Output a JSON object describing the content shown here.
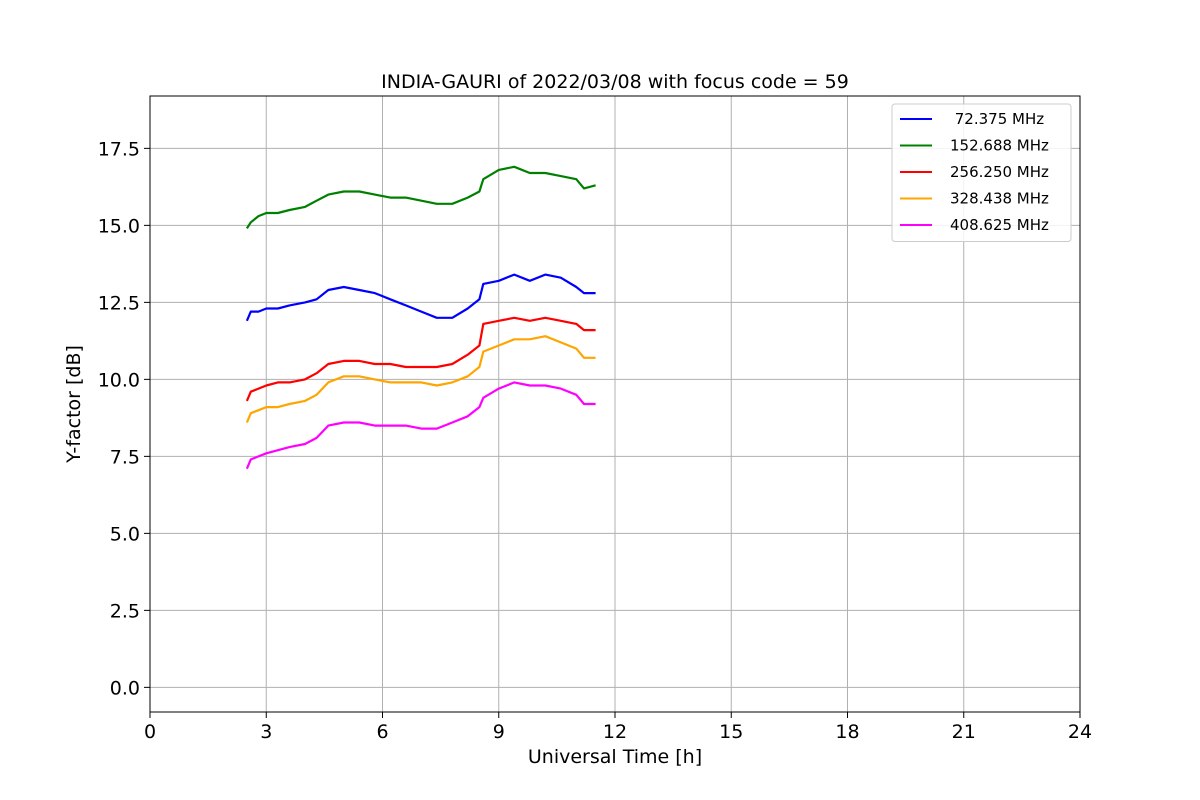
{
  "chart_data": {
    "type": "line",
    "title": "INDIA-GAURI of 2022/03/08 with focus code = 59",
    "xlabel": "Universal Time [h]",
    "ylabel": "Y-factor [dB]",
    "xlim": [
      0,
      24
    ],
    "ylim": [
      -0.8,
      19.2
    ],
    "xticks": [
      0,
      3,
      6,
      9,
      12,
      15,
      18,
      21,
      24
    ],
    "xtick_labels": [
      "0",
      "3",
      "6",
      "9",
      "12",
      "15",
      "18",
      "21",
      "24"
    ],
    "yticks": [
      0,
      2.5,
      5,
      7.5,
      10,
      12.5,
      15,
      17.5
    ],
    "ytick_labels": [
      "0.0",
      "2.5",
      "5.0",
      "7.5",
      "10.0",
      "12.5",
      "15.0",
      "17.5"
    ],
    "grid": true,
    "legend_position": "top-right",
    "series": [
      {
        "name": " 72.375 MHz",
        "color": "#0000ff",
        "x": [
          2.5,
          2.6,
          2.8,
          3.0,
          3.3,
          3.6,
          4.0,
          4.3,
          4.6,
          5.0,
          5.4,
          5.8,
          6.2,
          6.6,
          7.0,
          7.4,
          7.8,
          8.2,
          8.5,
          8.6,
          9.0,
          9.4,
          9.8,
          10.2,
          10.6,
          11.0,
          11.2,
          11.5
        ],
        "y": [
          11.9,
          12.2,
          12.2,
          12.3,
          12.3,
          12.4,
          12.5,
          12.6,
          12.9,
          13.0,
          12.9,
          12.8,
          12.6,
          12.4,
          12.2,
          12.0,
          12.0,
          12.3,
          12.6,
          13.1,
          13.2,
          13.4,
          13.2,
          13.4,
          13.3,
          13.0,
          12.8,
          12.8
        ]
      },
      {
        "name": "152.688 MHz",
        "color": "#008000",
        "x": [
          2.5,
          2.6,
          2.8,
          3.0,
          3.3,
          3.6,
          4.0,
          4.3,
          4.6,
          5.0,
          5.4,
          5.8,
          6.2,
          6.6,
          7.0,
          7.4,
          7.8,
          8.2,
          8.5,
          8.6,
          9.0,
          9.4,
          9.8,
          10.2,
          10.6,
          11.0,
          11.2,
          11.5
        ],
        "y": [
          14.9,
          15.1,
          15.3,
          15.4,
          15.4,
          15.5,
          15.6,
          15.8,
          16.0,
          16.1,
          16.1,
          16.0,
          15.9,
          15.9,
          15.8,
          15.7,
          15.7,
          15.9,
          16.1,
          16.5,
          16.8,
          16.9,
          16.7,
          16.7,
          16.6,
          16.5,
          16.2,
          16.3
        ]
      },
      {
        "name": "256.250 MHz",
        "color": "#ff0000",
        "x": [
          2.5,
          2.6,
          2.8,
          3.0,
          3.3,
          3.6,
          4.0,
          4.3,
          4.6,
          5.0,
          5.4,
          5.8,
          6.2,
          6.6,
          7.0,
          7.4,
          7.8,
          8.2,
          8.5,
          8.6,
          9.0,
          9.4,
          9.8,
          10.2,
          10.6,
          11.0,
          11.2,
          11.5
        ],
        "y": [
          9.3,
          9.6,
          9.7,
          9.8,
          9.9,
          9.9,
          10.0,
          10.2,
          10.5,
          10.6,
          10.6,
          10.5,
          10.5,
          10.4,
          10.4,
          10.4,
          10.5,
          10.8,
          11.1,
          11.8,
          11.9,
          12.0,
          11.9,
          12.0,
          11.9,
          11.8,
          11.6,
          11.6
        ]
      },
      {
        "name": "328.438 MHz",
        "color": "#ffa500",
        "x": [
          2.5,
          2.6,
          2.8,
          3.0,
          3.3,
          3.6,
          4.0,
          4.3,
          4.6,
          5.0,
          5.4,
          5.8,
          6.2,
          6.6,
          7.0,
          7.4,
          7.8,
          8.2,
          8.5,
          8.6,
          9.0,
          9.4,
          9.8,
          10.2,
          10.6,
          11.0,
          11.2,
          11.5
        ],
        "y": [
          8.6,
          8.9,
          9.0,
          9.1,
          9.1,
          9.2,
          9.3,
          9.5,
          9.9,
          10.1,
          10.1,
          10.0,
          9.9,
          9.9,
          9.9,
          9.8,
          9.9,
          10.1,
          10.4,
          10.9,
          11.1,
          11.3,
          11.3,
          11.4,
          11.2,
          11.0,
          10.7,
          10.7
        ]
      },
      {
        "name": "408.625 MHz",
        "color": "#ff00ff",
        "x": [
          2.5,
          2.6,
          2.8,
          3.0,
          3.3,
          3.6,
          4.0,
          4.3,
          4.6,
          5.0,
          5.4,
          5.8,
          6.2,
          6.6,
          7.0,
          7.4,
          7.8,
          8.2,
          8.5,
          8.6,
          9.0,
          9.4,
          9.8,
          10.2,
          10.6,
          11.0,
          11.2,
          11.5
        ],
        "y": [
          7.1,
          7.4,
          7.5,
          7.6,
          7.7,
          7.8,
          7.9,
          8.1,
          8.5,
          8.6,
          8.6,
          8.5,
          8.5,
          8.5,
          8.4,
          8.4,
          8.6,
          8.8,
          9.1,
          9.4,
          9.7,
          9.9,
          9.8,
          9.8,
          9.7,
          9.5,
          9.2,
          9.2
        ]
      }
    ]
  }
}
